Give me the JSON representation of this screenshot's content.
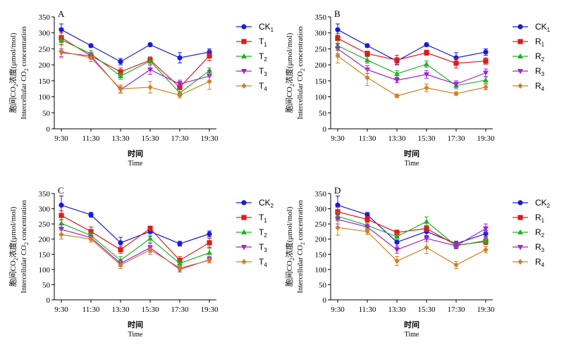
{
  "chart_data": [
    {
      "panel": "A",
      "type": "line",
      "categories": [
        "9:30",
        "11:30",
        "13:30",
        "15:30",
        "17:30",
        "19:30"
      ],
      "ylabel_cn_before": "胞间CO",
      "ylabel_cn_sub": "2",
      "ylabel_cn_after": "浓度(μmol/mol)",
      "ylabel_en_before": "Intercellular CO",
      "ylabel_en_sub": "2",
      "ylabel_en_after": " concentration",
      "xlabel_cn": "时间",
      "xlabel_en": "Time",
      "ylim": [
        0,
        350
      ],
      "yticks": [
        "0",
        "50",
        "100",
        "150",
        "200",
        "250",
        "300",
        "350"
      ],
      "series": [
        {
          "name": "CK",
          "sub": "1",
          "color": "#1a1adc",
          "marker": "circle",
          "values": [
            310,
            260,
            210,
            263,
            222,
            240
          ],
          "errors": [
            18,
            5,
            10,
            5,
            16,
            10
          ]
        },
        {
          "name": "T",
          "sub": "1",
          "color": "#e01a1a",
          "marker": "square",
          "values": [
            285,
            228,
            178,
            215,
            130,
            228
          ],
          "errors": [
            15,
            10,
            12,
            10,
            18,
            15
          ]
        },
        {
          "name": "T",
          "sub": "2",
          "color": "#22b022",
          "marker": "triangle-up",
          "values": [
            278,
            235,
            165,
            212,
            112,
            182
          ],
          "errors": [
            14,
            10,
            10,
            12,
            10,
            8
          ]
        },
        {
          "name": "T",
          "sub": "3",
          "color": "#a020d8",
          "marker": "triangle-down",
          "values": [
            238,
            228,
            122,
            185,
            140,
            165
          ],
          "errors": [
            12,
            10,
            10,
            15,
            12,
            18
          ]
        },
        {
          "name": "T",
          "sub": "4",
          "color": "#d08020",
          "marker": "diamond",
          "values": [
            242,
            222,
            125,
            130,
            105,
            148
          ],
          "errors": [
            20,
            12,
            12,
            18,
            8,
            25
          ]
        }
      ]
    },
    {
      "panel": "B",
      "type": "line",
      "categories": [
        "9:30",
        "11:30",
        "13:30",
        "15:30",
        "17:30",
        "19:30"
      ],
      "ylabel_cn_before": "胞间CO",
      "ylabel_cn_sub": "2",
      "ylabel_cn_after": "浓度(μmol/mol)",
      "ylabel_en_before": "Intercellular CO",
      "ylabel_en_sub": "2",
      "ylabel_en_after": " concentration",
      "xlabel_cn": "时间",
      "xlabel_en": "Time",
      "ylim": [
        0,
        350
      ],
      "yticks": [
        "0",
        "50",
        "100",
        "150",
        "200",
        "250",
        "300",
        "350"
      ],
      "series": [
        {
          "name": "CK",
          "sub": "1",
          "color": "#1a1adc",
          "marker": "circle",
          "values": [
            310,
            260,
            212,
            263,
            222,
            240
          ],
          "errors": [
            18,
            5,
            10,
            5,
            16,
            10
          ]
        },
        {
          "name": "R",
          "sub": "1",
          "color": "#e01a1a",
          "marker": "square",
          "values": [
            283,
            235,
            215,
            238,
            205,
            212
          ],
          "errors": [
            15,
            8,
            15,
            8,
            15,
            10
          ]
        },
        {
          "name": "R",
          "sub": "2",
          "color": "#22b022",
          "marker": "triangle-up",
          "values": [
            260,
            215,
            172,
            202,
            135,
            152
          ],
          "errors": [
            15,
            10,
            10,
            10,
            10,
            10
          ]
        },
        {
          "name": "R",
          "sub": "3",
          "color": "#a020d8",
          "marker": "triangle-down",
          "values": [
            250,
            185,
            152,
            170,
            140,
            175
          ],
          "errors": [
            15,
            12,
            8,
            12,
            10,
            12
          ]
        },
        {
          "name": "R",
          "sub": "4",
          "color": "#d08020",
          "marker": "diamond",
          "values": [
            228,
            160,
            103,
            128,
            110,
            130
          ],
          "errors": [
            22,
            25,
            5,
            12,
            5,
            8
          ]
        }
      ]
    },
    {
      "panel": "C",
      "type": "line",
      "categories": [
        "9:30",
        "11:30",
        "13:30",
        "15:30",
        "17:30",
        "19:30"
      ],
      "ylabel_cn_before": "胞间CO",
      "ylabel_cn_sub": "2",
      "ylabel_cn_after": "浓度(μmol/mol)",
      "ylabel_en_before": "Intercellular CO",
      "ylabel_en_sub": "2",
      "ylabel_en_after": " concentration",
      "xlabel_cn": "时间",
      "xlabel_en": "Time",
      "ylim": [
        0,
        350
      ],
      "yticks": [
        "0",
        "50",
        "100",
        "150",
        "200",
        "250",
        "300",
        "350"
      ],
      "series": [
        {
          "name": "CK",
          "sub": "2",
          "color": "#1a1adc",
          "marker": "circle",
          "values": [
            312,
            280,
            188,
            225,
            185,
            217
          ],
          "errors": [
            30,
            8,
            18,
            15,
            8,
            10
          ]
        },
        {
          "name": "T",
          "sub": "1",
          "color": "#e01a1a",
          "marker": "square",
          "values": [
            278,
            225,
            165,
            235,
            130,
            188
          ],
          "errors": [
            15,
            15,
            12,
            8,
            12,
            15
          ]
        },
        {
          "name": "T",
          "sub": "2",
          "color": "#22b022",
          "marker": "triangle-up",
          "values": [
            252,
            212,
            130,
            202,
            120,
            155
          ],
          "errors": [
            12,
            10,
            12,
            15,
            10,
            15
          ]
        },
        {
          "name": "T",
          "sub": "3",
          "color": "#a020d8",
          "marker": "triangle-down",
          "values": [
            232,
            205,
            120,
            172,
            100,
            132
          ],
          "errors": [
            15,
            8,
            10,
            15,
            8,
            10
          ]
        },
        {
          "name": "T",
          "sub": "4",
          "color": "#d08020",
          "marker": "diamond",
          "values": [
            215,
            200,
            115,
            165,
            105,
            130
          ],
          "errors": [
            15,
            10,
            12,
            15,
            8,
            8
          ]
        }
      ]
    },
    {
      "panel": "D",
      "type": "line",
      "categories": [
        "9:30",
        "11:30",
        "13:30",
        "15:30",
        "17:30",
        "19:30"
      ],
      "ylabel_cn_before": "胞间CO",
      "ylabel_cn_sub": "2",
      "ylabel_cn_after": "浓度(μmol/mol)",
      "ylabel_en_before": "Intercellular CO",
      "ylabel_en_sub": "2",
      "ylabel_en_after": " concentration",
      "xlabel_cn": "时间",
      "xlabel_en": "Time",
      "ylim": [
        0,
        350
      ],
      "yticks": [
        "0",
        "50",
        "100",
        "150",
        "200",
        "250",
        "300",
        "350"
      ],
      "series": [
        {
          "name": "CK",
          "sub": "2",
          "color": "#1a1adc",
          "marker": "circle",
          "values": [
            312,
            280,
            190,
            225,
            185,
            218
          ],
          "errors": [
            30,
            8,
            18,
            15,
            8,
            10
          ]
        },
        {
          "name": "R",
          "sub": "1",
          "color": "#e01a1a",
          "marker": "square",
          "values": [
            290,
            265,
            222,
            235,
            180,
            192
          ],
          "errors": [
            15,
            10,
            8,
            10,
            10,
            10
          ]
        },
        {
          "name": "R",
          "sub": "2",
          "color": "#22b022",
          "marker": "triangle-up",
          "values": [
            275,
            245,
            208,
            258,
            178,
            195
          ],
          "errors": [
            15,
            12,
            10,
            15,
            8,
            10
          ]
        },
        {
          "name": "R",
          "sub": "3",
          "color": "#a020d8",
          "marker": "triangle-down",
          "values": [
            265,
            240,
            165,
            202,
            178,
            235
          ],
          "errors": [
            15,
            10,
            12,
            10,
            10,
            15
          ]
        },
        {
          "name": "R",
          "sub": "4",
          "color": "#d08020",
          "marker": "diamond",
          "values": [
            238,
            225,
            128,
            172,
            115,
            165
          ],
          "errors": [
            25,
            10,
            15,
            20,
            12,
            10
          ]
        }
      ]
    }
  ]
}
